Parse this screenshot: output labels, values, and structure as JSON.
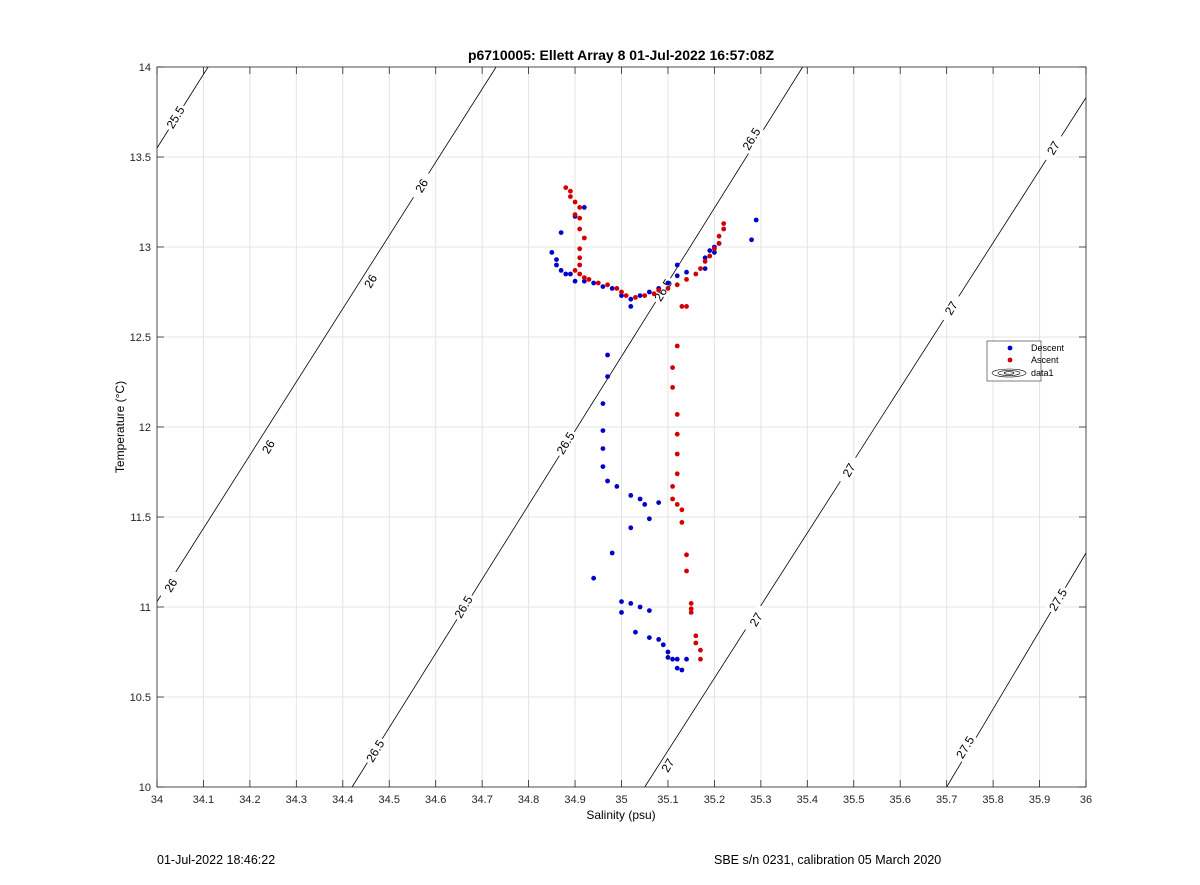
{
  "chart_data": {
    "type": "scatter",
    "title": "p6710005: Ellett Array 8 01-Jul-2022 16:57:08Z",
    "xlabel": "Salinity (psu)",
    "ylabel": "Temperature (°C)",
    "xlim": [
      34,
      36
    ],
    "ylim": [
      10,
      14
    ],
    "x_ticks": [
      "34",
      "34.1",
      "34.2",
      "34.3",
      "34.4",
      "34.5",
      "34.6",
      "34.7",
      "34.8",
      "34.9",
      "35",
      "35.1",
      "35.2",
      "35.3",
      "35.4",
      "35.5",
      "35.6",
      "35.7",
      "35.8",
      "35.9",
      "36"
    ],
    "y_ticks": [
      "10",
      "10.5",
      "11",
      "11.5",
      "12",
      "12.5",
      "13",
      "13.5",
      "14"
    ],
    "grid": true,
    "legend_placement": "right",
    "legend": [
      "Descent",
      "Ascent",
      "data1"
    ],
    "contours": [
      {
        "label": "25.5",
        "points": [
          [
            34.0,
            13.55
          ],
          [
            34.11,
            14.0
          ]
        ]
      },
      {
        "label": "26",
        "points": [
          [
            34.0,
            11.03
          ],
          [
            34.73,
            14.0
          ]
        ]
      },
      {
        "label": "26.5",
        "points": [
          [
            34.42,
            10.0
          ],
          [
            35.39,
            14.0
          ]
        ]
      },
      {
        "label": "27",
        "points": [
          [
            35.05,
            10.0
          ],
          [
            36.0,
            13.83
          ]
        ]
      },
      {
        "label": "27.5",
        "points": [
          [
            35.7,
            10.0
          ],
          [
            36.0,
            11.3
          ]
        ]
      }
    ],
    "contour_labels": [
      {
        "text": "25.5",
        "at": [
          34.04,
          13.72
        ]
      },
      {
        "text": "26",
        "at": [
          34.57,
          13.34
        ]
      },
      {
        "text": "26",
        "at": [
          34.46,
          12.81
        ]
      },
      {
        "text": "26",
        "at": [
          34.24,
          11.89
        ]
      },
      {
        "text": "26",
        "at": [
          34.03,
          11.12
        ]
      },
      {
        "text": "26.5",
        "at": [
          35.28,
          13.6
        ]
      },
      {
        "text": "26.5",
        "at": [
          35.09,
          12.76
        ]
      },
      {
        "text": "26.5",
        "at": [
          34.88,
          11.91
        ]
      },
      {
        "text": "26.5",
        "at": [
          34.66,
          11.0
        ]
      },
      {
        "text": "26.5",
        "at": [
          34.47,
          10.2
        ]
      },
      {
        "text": "27",
        "at": [
          35.93,
          13.55
        ]
      },
      {
        "text": "27",
        "at": [
          35.71,
          12.66
        ]
      },
      {
        "text": "27",
        "at": [
          35.49,
          11.76
        ]
      },
      {
        "text": "27",
        "at": [
          35.29,
          10.93
        ]
      },
      {
        "text": "27",
        "at": [
          35.1,
          10.12
        ]
      },
      {
        "text": "27.5",
        "at": [
          35.94,
          11.04
        ]
      },
      {
        "text": "27.5",
        "at": [
          35.74,
          10.22
        ]
      }
    ],
    "series": [
      {
        "name": "Descent",
        "color": "#0000c8",
        "points": [
          [
            34.85,
            12.97
          ],
          [
            34.86,
            12.93
          ],
          [
            34.86,
            12.9
          ],
          [
            34.87,
            12.87
          ],
          [
            34.88,
            12.85
          ],
          [
            34.89,
            12.85
          ],
          [
            34.87,
            13.08
          ],
          [
            34.9,
            12.81
          ],
          [
            34.92,
            12.81
          ],
          [
            34.94,
            12.8
          ],
          [
            34.96,
            12.78
          ],
          [
            34.98,
            12.77
          ],
          [
            35.0,
            12.73
          ],
          [
            35.02,
            12.71
          ],
          [
            35.02,
            12.67
          ],
          [
            35.04,
            12.73
          ],
          [
            35.06,
            12.75
          ],
          [
            35.08,
            12.77
          ],
          [
            35.1,
            12.8
          ],
          [
            35.12,
            12.84
          ],
          [
            35.12,
            12.9
          ],
          [
            35.14,
            12.86
          ],
          [
            35.18,
            12.88
          ],
          [
            35.18,
            12.94
          ],
          [
            35.19,
            12.98
          ],
          [
            35.2,
            12.97
          ],
          [
            35.2,
            13.0
          ],
          [
            35.21,
            13.02
          ],
          [
            35.28,
            13.04
          ],
          [
            35.29,
            13.15
          ],
          [
            34.9,
            13.17
          ],
          [
            34.92,
            13.22
          ],
          [
            34.97,
            12.4
          ],
          [
            34.97,
            12.28
          ],
          [
            34.96,
            12.13
          ],
          [
            34.96,
            11.98
          ],
          [
            34.96,
            11.88
          ],
          [
            34.96,
            11.78
          ],
          [
            34.97,
            11.7
          ],
          [
            34.99,
            11.67
          ],
          [
            35.02,
            11.62
          ],
          [
            35.04,
            11.6
          ],
          [
            35.05,
            11.57
          ],
          [
            35.08,
            11.58
          ],
          [
            35.06,
            11.49
          ],
          [
            35.02,
            11.44
          ],
          [
            34.98,
            11.3
          ],
          [
            34.94,
            11.16
          ],
          [
            35.0,
            11.03
          ],
          [
            35.02,
            11.02
          ],
          [
            35.04,
            11.0
          ],
          [
            35.06,
            10.98
          ],
          [
            35.0,
            10.97
          ],
          [
            35.03,
            10.86
          ],
          [
            35.06,
            10.83
          ],
          [
            35.08,
            10.82
          ],
          [
            35.09,
            10.79
          ],
          [
            35.1,
            10.75
          ],
          [
            35.1,
            10.72
          ],
          [
            35.11,
            10.71
          ],
          [
            35.12,
            10.71
          ],
          [
            35.14,
            10.71
          ],
          [
            35.12,
            10.66
          ],
          [
            35.13,
            10.65
          ]
        ]
      },
      {
        "name": "Ascent",
        "color": "#d20000",
        "points": [
          [
            34.88,
            13.33
          ],
          [
            34.89,
            13.31
          ],
          [
            34.89,
            13.28
          ],
          [
            34.9,
            13.25
          ],
          [
            34.91,
            13.22
          ],
          [
            34.9,
            13.18
          ],
          [
            34.91,
            13.16
          ],
          [
            34.91,
            13.1
          ],
          [
            34.92,
            13.05
          ],
          [
            34.91,
            12.99
          ],
          [
            34.91,
            12.94
          ],
          [
            34.91,
            12.9
          ],
          [
            34.9,
            12.87
          ],
          [
            34.91,
            12.85
          ],
          [
            34.92,
            12.83
          ],
          [
            34.93,
            12.82
          ],
          [
            34.95,
            12.8
          ],
          [
            34.97,
            12.79
          ],
          [
            34.99,
            12.77
          ],
          [
            35.0,
            12.75
          ],
          [
            35.01,
            12.73
          ],
          [
            35.03,
            12.72
          ],
          [
            35.05,
            12.73
          ],
          [
            35.07,
            12.74
          ],
          [
            35.08,
            12.76
          ],
          [
            35.1,
            12.77
          ],
          [
            35.12,
            12.79
          ],
          [
            35.14,
            12.82
          ],
          [
            35.16,
            12.85
          ],
          [
            35.17,
            12.88
          ],
          [
            35.18,
            12.92
          ],
          [
            35.19,
            12.95
          ],
          [
            35.2,
            12.99
          ],
          [
            35.21,
            13.02
          ],
          [
            35.21,
            13.06
          ],
          [
            35.22,
            13.1
          ],
          [
            35.22,
            13.13
          ],
          [
            35.14,
            12.67
          ],
          [
            35.13,
            12.67
          ],
          [
            35.12,
            12.45
          ],
          [
            35.11,
            12.33
          ],
          [
            35.11,
            12.22
          ],
          [
            35.12,
            12.07
          ],
          [
            35.12,
            11.96
          ],
          [
            35.12,
            11.85
          ],
          [
            35.12,
            11.74
          ],
          [
            35.11,
            11.67
          ],
          [
            35.11,
            11.6
          ],
          [
            35.12,
            11.57
          ],
          [
            35.13,
            11.54
          ],
          [
            35.13,
            11.47
          ],
          [
            35.14,
            11.29
          ],
          [
            35.14,
            11.2
          ],
          [
            35.15,
            11.02
          ],
          [
            35.15,
            10.99
          ],
          [
            35.15,
            10.97
          ],
          [
            35.16,
            10.84
          ],
          [
            35.16,
            10.8
          ],
          [
            35.17,
            10.76
          ],
          [
            35.17,
            10.71
          ]
        ]
      }
    ]
  },
  "footer": {
    "timestamp": "01-Jul-2022 18:46:22",
    "calibration": "SBE s/n 0231, calibration 05 March 2020"
  }
}
